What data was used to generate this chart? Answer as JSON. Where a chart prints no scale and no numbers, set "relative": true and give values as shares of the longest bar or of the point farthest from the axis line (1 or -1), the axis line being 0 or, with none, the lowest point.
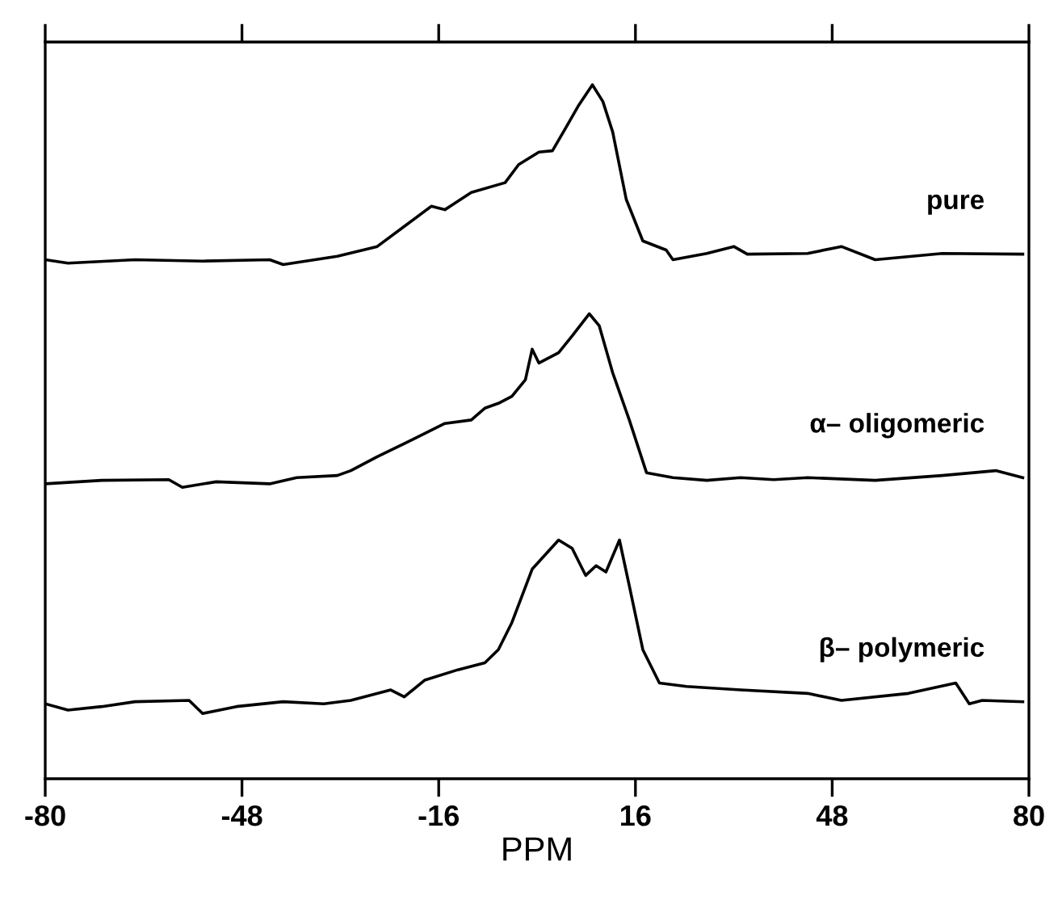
{
  "chart_data": {
    "type": "line",
    "xlabel": "PPM",
    "xlim": [
      -80,
      80
    ],
    "xticks": [
      -80,
      -48,
      -16,
      16,
      48,
      80
    ],
    "relative": true,
    "tick_labels": "x",
    "grid": false,
    "legend": false,
    "marker": "none",
    "line_style": "solid",
    "series": [
      {
        "name": "pure",
        "color": "#000000",
        "x": [
          -80,
          -76.3,
          -65.4,
          -54.4,
          -43.5,
          -41.3,
          -32.5,
          -26.0,
          -21.6,
          -17.2,
          -15.0,
          -10.7,
          -5.2,
          -3.0,
          0.3,
          2.5,
          4.6,
          6.8,
          9.0,
          10.7,
          12.3,
          14.5,
          17.2,
          21.0,
          22.1,
          27.6,
          32.0,
          34.2,
          44.0,
          49.5,
          55.0,
          65.9,
          79.0
        ],
        "values": [
          0.748,
          0.743,
          0.748,
          0.746,
          0.748,
          0.741,
          0.753,
          0.767,
          0.796,
          0.825,
          0.82,
          0.845,
          0.859,
          0.885,
          0.903,
          0.905,
          0.937,
          0.971,
          1.0,
          0.976,
          0.932,
          0.835,
          0.775,
          0.762,
          0.748,
          0.757,
          0.767,
          0.756,
          0.757,
          0.767,
          0.748,
          0.757,
          0.756
        ]
      },
      {
        "name": "α– oligomeric",
        "color": "#000000",
        "x": [
          -80,
          -70.8,
          -59.9,
          -57.7,
          -52.2,
          -43.5,
          -39.1,
          -32.5,
          -30.3,
          -26.0,
          -21.6,
          -15.0,
          -10.7,
          -8.5,
          -6.3,
          -4.1,
          -1.9,
          -0.8,
          0.3,
          3.5,
          5.7,
          8.5,
          10.1,
          12.3,
          15.0,
          17.8,
          22.1,
          27.6,
          33.1,
          38.5,
          44.0,
          55.0,
          65.9,
          74.6,
          79.0
        ],
        "values": [
          0.425,
          0.43,
          0.431,
          0.42,
          0.428,
          0.425,
          0.434,
          0.437,
          0.444,
          0.464,
          0.483,
          0.512,
          0.517,
          0.534,
          0.541,
          0.551,
          0.575,
          0.619,
          0.599,
          0.614,
          0.638,
          0.67,
          0.653,
          0.585,
          0.517,
          0.441,
          0.434,
          0.43,
          0.434,
          0.431,
          0.434,
          0.43,
          0.437,
          0.444,
          0.434
        ]
      },
      {
        "name": "β– polymeric",
        "color": "#000000",
        "x": [
          -80,
          -76.3,
          -70.8,
          -65.4,
          -56.6,
          -54.4,
          -48.9,
          -41.3,
          -34.7,
          -30.3,
          -23.8,
          -21.6,
          -18.3,
          -12.9,
          -8.5,
          -6.3,
          -4.1,
          -0.8,
          3.5,
          5.7,
          7.9,
          9.6,
          11.2,
          13.4,
          15.0,
          17.2,
          19.9,
          24.3,
          33.1,
          44.0,
          49.5,
          60.4,
          68.1,
          70.3,
          72.4,
          79.0
        ],
        "values": [
          0.108,
          0.099,
          0.104,
          0.111,
          0.113,
          0.094,
          0.104,
          0.111,
          0.108,
          0.113,
          0.128,
          0.118,
          0.142,
          0.157,
          0.167,
          0.186,
          0.225,
          0.302,
          0.344,
          0.332,
          0.293,
          0.307,
          0.298,
          0.344,
          0.278,
          0.186,
          0.138,
          0.133,
          0.128,
          0.123,
          0.113,
          0.123,
          0.138,
          0.108,
          0.113,
          0.111
        ]
      }
    ]
  }
}
